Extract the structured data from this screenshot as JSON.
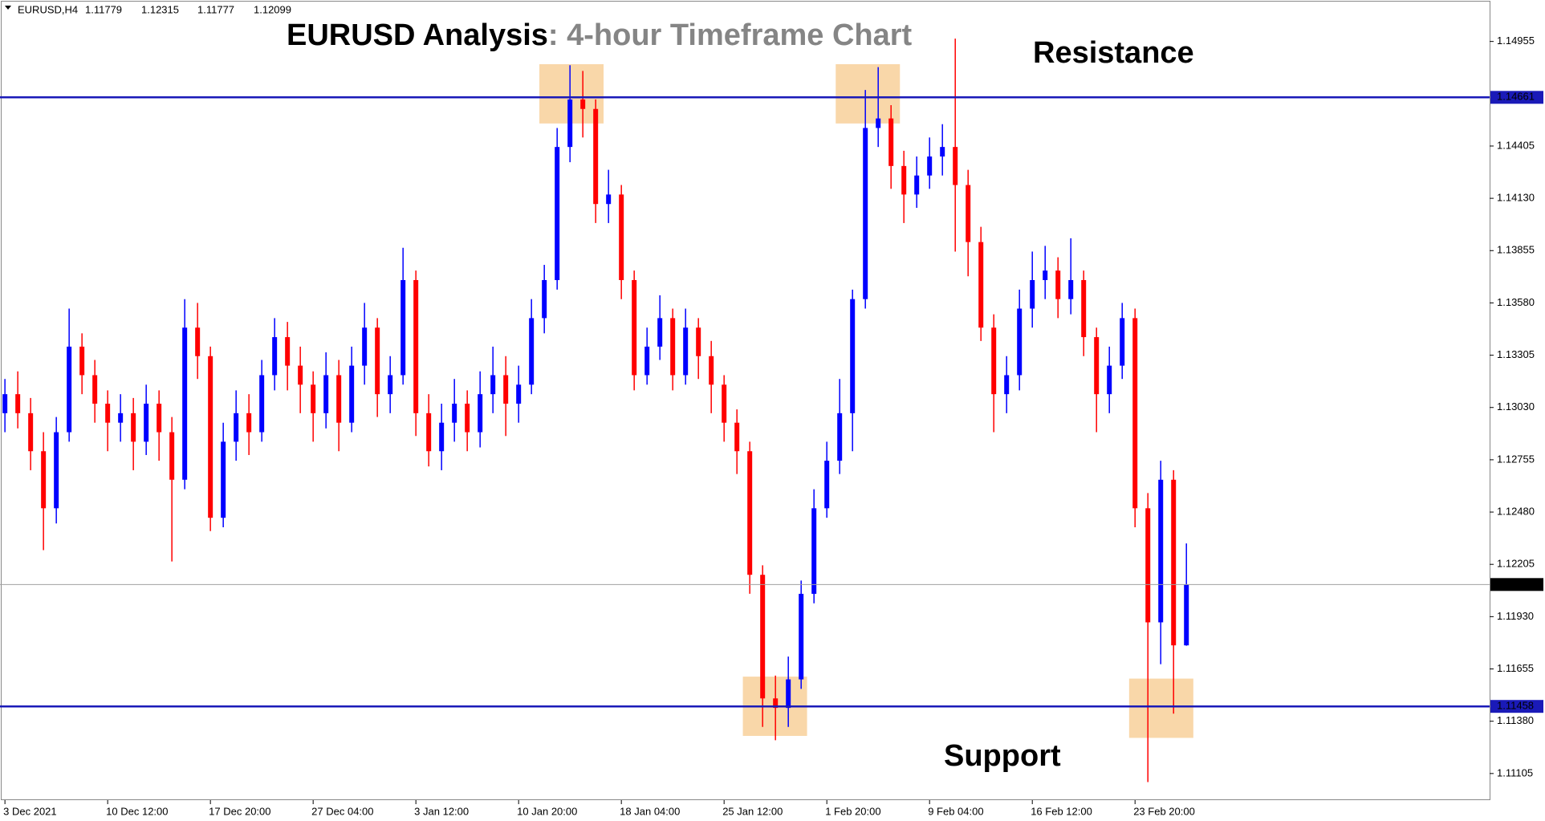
{
  "chart_data": {
    "type": "candlestick",
    "title": "EURUSD Analysis",
    "title_suffix": ": 4-hour Timeframe Chart",
    "symbol": "EURUSD,H4",
    "resistance_text": "Resistance",
    "support_text": "Support",
    "resistance_level": 1.14661,
    "support_level": 1.11458,
    "up_color": "#0000ff",
    "down_color": "#ff0000",
    "level_color": "#1a1ab8",
    "ylim": [
      1.10965,
      1.15173
    ],
    "yticks": [
      1.14955,
      1.14405,
      {
        "value": 1.1413,
        "label": "1.14130"
      },
      1.13855,
      {
        "value": 1.1358,
        "label": "1.13580"
      },
      1.13305,
      {
        "value": 1.1303,
        "label": "1.13030"
      },
      1.12755,
      {
        "value": 1.1248,
        "label": "1.12480"
      },
      1.12205,
      {
        "value": 1.1193,
        "label": "1.11930"
      },
      1.11655,
      {
        "value": 1.1138,
        "label": "1.11380"
      },
      1.11105
    ],
    "categories": [
      "3 Dec 2021",
      null,
      null,
      null,
      null,
      null,
      null,
      null,
      "10 Dec 12:00",
      null,
      null,
      null,
      null,
      null,
      null,
      null,
      "17 Dec 20:00",
      null,
      null,
      null,
      null,
      null,
      null,
      null,
      "27 Dec 04:00",
      null,
      null,
      null,
      null,
      null,
      null,
      null,
      "3 Jan 12:00",
      null,
      null,
      null,
      null,
      null,
      null,
      null,
      "10 Jan 20:00",
      null,
      null,
      null,
      null,
      null,
      null,
      null,
      "18 Jan 04:00",
      null,
      null,
      null,
      null,
      null,
      null,
      null,
      "25 Jan 12:00",
      null,
      null,
      null,
      null,
      null,
      null,
      null,
      "1 Feb 20:00",
      null,
      null,
      null,
      null,
      null,
      null,
      null,
      "9 Feb 04:00",
      null,
      null,
      null,
      null,
      null,
      null,
      null,
      "16 Feb 12:00",
      null,
      null,
      null,
      null,
      null,
      null,
      null,
      "23 Feb 20:00",
      null,
      null,
      null,
      null
    ],
    "open": [
      1.13,
      1.131,
      1.13,
      1.128,
      1.125,
      1.129,
      1.1335,
      1.132,
      1.1305,
      1.1295,
      1.13,
      1.1285,
      1.1305,
      1.129,
      1.1265,
      1.1345,
      1.133,
      1.1245,
      1.1285,
      1.13,
      1.129,
      1.132,
      1.134,
      1.1325,
      1.1315,
      1.13,
      1.132,
      1.1295,
      1.1325,
      1.1345,
      1.131,
      1.132,
      1.137,
      1.13,
      1.128,
      1.1295,
      1.1305,
      1.129,
      1.131,
      1.132,
      1.1305,
      1.1315,
      1.135,
      1.137,
      1.144,
      1.1465,
      1.146,
      1.141,
      1.1415,
      1.137,
      1.132,
      1.1335,
      1.135,
      1.132,
      1.1345,
      1.133,
      1.1315,
      1.1295,
      1.128,
      1.1215,
      1.115,
      1.1145,
      1.116,
      1.1205,
      1.125,
      1.1275,
      1.13,
      1.136,
      1.145,
      1.1455,
      1.143,
      1.1415,
      1.1425,
      1.1435,
      1.144,
      1.142,
      1.139,
      1.1345,
      1.131,
      1.132,
      1.1355,
      1.137,
      1.1375,
      1.136,
      1.137,
      1.134,
      1.131,
      1.1325,
      1.135,
      1.125,
      1.119,
      1.1265,
      1.11779
    ],
    "high": [
      1.1318,
      1.1322,
      1.1308,
      1.129,
      1.1298,
      1.1355,
      1.1342,
      1.1328,
      1.1312,
      1.131,
      1.1308,
      1.1315,
      1.1312,
      1.1298,
      1.136,
      1.1358,
      1.1335,
      1.1295,
      1.1312,
      1.131,
      1.1328,
      1.135,
      1.1348,
      1.1335,
      1.1322,
      1.1332,
      1.1328,
      1.1335,
      1.1358,
      1.135,
      1.133,
      1.1387,
      1.1375,
      1.131,
      1.1305,
      1.1318,
      1.1312,
      1.1322,
      1.1335,
      1.133,
      1.1325,
      1.136,
      1.1378,
      1.145,
      1.1483,
      1.148,
      1.1465,
      1.1428,
      1.142,
      1.1375,
      1.1345,
      1.1362,
      1.1355,
      1.1355,
      1.135,
      1.1338,
      1.132,
      1.1302,
      1.1285,
      1.122,
      1.1162,
      1.1172,
      1.1212,
      1.126,
      1.1285,
      1.1318,
      1.1365,
      1.147,
      1.1482,
      1.1462,
      1.1438,
      1.1435,
      1.1445,
      1.1452,
      1.1497,
      1.1428,
      1.1398,
      1.1352,
      1.133,
      1.1365,
      1.1385,
      1.1388,
      1.1382,
      1.1392,
      1.1375,
      1.1345,
      1.1335,
      1.1358,
      1.1355,
      1.1258,
      1.1275,
      1.127,
      1.12315
    ],
    "low": [
      1.129,
      1.1292,
      1.127,
      1.1228,
      1.1242,
      1.1285,
      1.131,
      1.1295,
      1.128,
      1.1285,
      1.127,
      1.1278,
      1.1275,
      1.1222,
      1.126,
      1.1318,
      1.1238,
      1.124,
      1.1275,
      1.1278,
      1.1285,
      1.1312,
      1.1312,
      1.13,
      1.1285,
      1.1292,
      1.128,
      1.129,
      1.1315,
      1.1298,
      1.13,
      1.1315,
      1.1288,
      1.1272,
      1.127,
      1.1285,
      1.128,
      1.1282,
      1.13,
      1.1288,
      1.1295,
      1.131,
      1.1342,
      1.1365,
      1.1432,
      1.1445,
      1.14,
      1.14,
      1.136,
      1.1312,
      1.1315,
      1.1328,
      1.1312,
      1.1315,
      1.1318,
      1.13,
      1.1285,
      1.1268,
      1.1205,
      1.1135,
      1.1128,
      1.1135,
      1.1155,
      1.12,
      1.1245,
      1.1268,
      1.128,
      1.1355,
      1.144,
      1.1418,
      1.14,
      1.1408,
      1.1418,
      1.1425,
      1.1385,
      1.1372,
      1.1338,
      1.129,
      1.13,
      1.1312,
      1.1345,
      1.136,
      1.135,
      1.1352,
      1.133,
      1.129,
      1.13,
      1.1318,
      1.124,
      1.1106,
      1.1168,
      1.1142,
      1.11777
    ],
    "close": [
      1.131,
      1.13,
      1.128,
      1.125,
      1.129,
      1.1335,
      1.132,
      1.1305,
      1.1295,
      1.13,
      1.1285,
      1.1305,
      1.129,
      1.1265,
      1.1345,
      1.133,
      1.1245,
      1.1285,
      1.13,
      1.129,
      1.132,
      1.134,
      1.1325,
      1.1315,
      1.13,
      1.132,
      1.1295,
      1.1325,
      1.1345,
      1.131,
      1.132,
      1.137,
      1.13,
      1.128,
      1.1295,
      1.1305,
      1.129,
      1.131,
      1.132,
      1.1305,
      1.1315,
      1.135,
      1.137,
      1.144,
      1.1465,
      1.146,
      1.141,
      1.1415,
      1.137,
      1.132,
      1.1335,
      1.135,
      1.132,
      1.1345,
      1.133,
      1.1315,
      1.1295,
      1.128,
      1.1215,
      1.115,
      1.1145,
      1.116,
      1.1205,
      1.125,
      1.1275,
      1.13,
      1.136,
      1.145,
      1.1455,
      1.143,
      1.1415,
      1.1425,
      1.1435,
      1.144,
      1.142,
      1.139,
      1.1345,
      1.131,
      1.132,
      1.1355,
      1.137,
      1.1375,
      1.136,
      1.137,
      1.134,
      1.131,
      1.1325,
      1.135,
      1.125,
      1.119,
      1.1265,
      1.11779,
      1.12099
    ]
  }
}
